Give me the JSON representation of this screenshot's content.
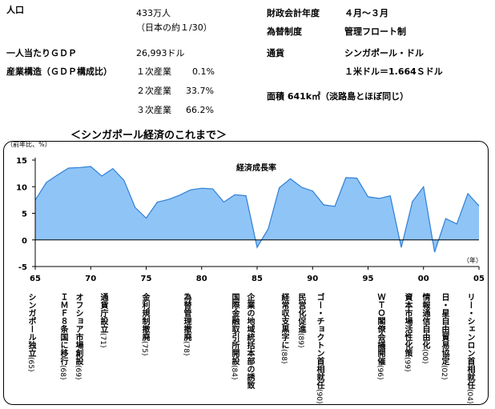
{
  "info": {
    "population_label": "人口",
    "population_value": "433万人",
    "population_note": "（日本の約１/30）",
    "gdp_pc_label": "一人当たりＧＤＰ",
    "gdp_pc_value": "26,993ドル",
    "structure_label": "産業構造（ＧＤＰ構成比）",
    "primary_label": "１次産業",
    "primary_value": "0.1%",
    "secondary_label": "２次産業",
    "secondary_value": "33.7%",
    "tertiary_label": "３次産業",
    "tertiary_value": "66.2%",
    "fiscal_label": "財政会計年度",
    "fiscal_value": "４月～３月",
    "fx_system_label": "為替制度",
    "fx_system_value": "管理フロート制",
    "currency_label": "通貨",
    "currency_value": "シンガポール・ドル",
    "rate_value": "１米ドル＝1.664Ｓドル",
    "area_value": "面積 641k㎡（淡路島とほぼ同じ）"
  },
  "chart_title": "＜シンガポール経済のこれまで＞",
  "chart_data": {
    "type": "area",
    "series_label": "経済成長率",
    "ylabel": "（前年比、%）",
    "xlabel_unit": "（年）",
    "ylim": [
      -5,
      15
    ],
    "yticks": [
      -5,
      0,
      5,
      10,
      15
    ],
    "xlim": [
      1965,
      2005
    ],
    "xtick_labels": [
      "65",
      "70",
      "75",
      "80",
      "85",
      "90",
      "95",
      "00",
      "05"
    ],
    "x": [
      1965,
      1966,
      1967,
      1968,
      1969,
      1970,
      1971,
      1972,
      1973,
      1974,
      1975,
      1976,
      1977,
      1978,
      1979,
      1980,
      1981,
      1982,
      1983,
      1984,
      1985,
      1986,
      1987,
      1988,
      1989,
      1990,
      1991,
      1992,
      1993,
      1994,
      1995,
      1996,
      1997,
      1998,
      1999,
      2000,
      2001,
      2002,
      2003,
      2004,
      2005
    ],
    "values": [
      7.5,
      10.8,
      12.2,
      13.5,
      13.6,
      13.8,
      12.0,
      13.4,
      11.2,
      6.1,
      4.1,
      7.1,
      7.6,
      8.4,
      9.4,
      9.7,
      9.6,
      7.1,
      8.5,
      8.3,
      -1.4,
      2.1,
      9.8,
      11.5,
      9.9,
      9.2,
      6.6,
      6.3,
      11.7,
      11.6,
      8.1,
      7.8,
      8.3,
      -1.4,
      7.2,
      10.0,
      -2.3,
      4.0,
      3.0,
      8.7,
      6.4
    ],
    "color_fill": "#8fc4f6",
    "color_line": "#2f7fd6",
    "events": [
      {
        "text": "シンガポール独立",
        "year": "(65)"
      },
      {
        "text": "ＩＭＦ８条国に移行",
        "year": "(68)"
      },
      {
        "text": "オフショア市場創設",
        "year": "(69)"
      },
      {
        "text": "通貨庁設立",
        "year": "(71)"
      },
      {
        "text": "金利規制撤廃",
        "year": "(75)"
      },
      {
        "text": "為替管理撤廃",
        "year": "(78)"
      },
      {
        "text": "国際金融取引所開設",
        "year": "(84)"
      },
      {
        "text": "企業の地域統括本部の誘致",
        "year": ""
      },
      {
        "text": "経常収支黒字に",
        "year": "(88)"
      },
      {
        "text": "民営化促進",
        "year": "(89)"
      },
      {
        "text": "ゴー・チョクトン首相就任",
        "year": "(90)"
      },
      {
        "text": "ＷＴＯ閣僚会議開催",
        "year": "(96)"
      },
      {
        "text": "資本市場活性化策",
        "year": "(99)"
      },
      {
        "text": "情報通信自由化",
        "year": "(00)"
      },
      {
        "text": "日・星自由貿易協定",
        "year": "(02)"
      },
      {
        "text": "リー・シェンロン首相就任",
        "year": "(04)"
      }
    ]
  }
}
